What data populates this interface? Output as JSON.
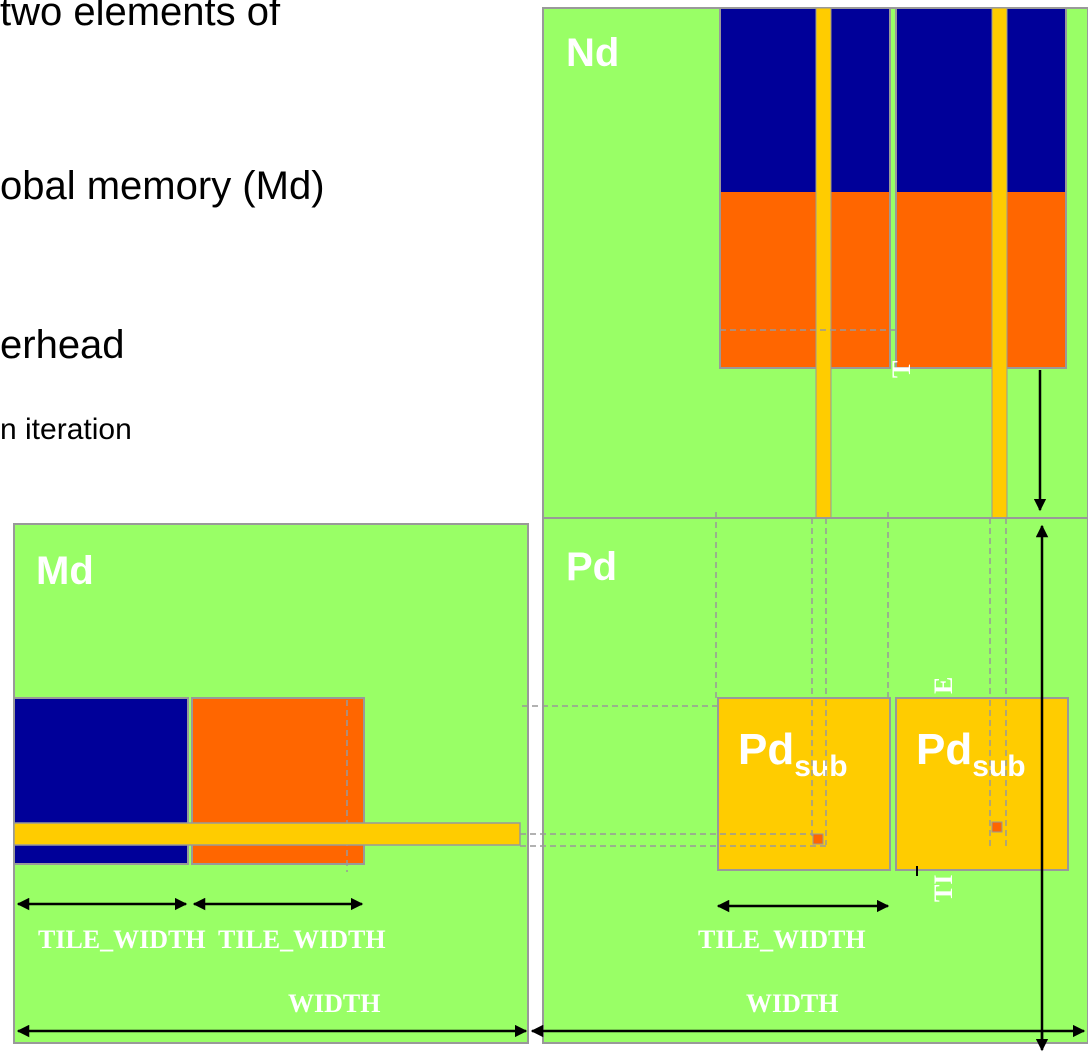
{
  "bullets": [
    "two elements of",
    "obal memory (Md)",
    "erhead",
    "n iteration"
  ],
  "matrices": {
    "nd": "Nd",
    "md": "Md",
    "pd": "Pd"
  },
  "tiles": {
    "pd_sub_base": "Pd",
    "pd_sub_subscript": "sub"
  },
  "dimensions": {
    "md_tile_width_1": "TILE_WIDTH",
    "md_tile_width_2": "TILE_WIDTH",
    "md_width": "WIDTH",
    "pd_tile_width": "TILE_WIDTH",
    "pd_width": "WIDTH",
    "nd_vertical_fragment": "T",
    "pd_vertical_fragment_top": "E",
    "pd_vertical_fragment_bottom": "TI"
  },
  "colors": {
    "matrix_green": "#99FF66",
    "tile_blue": "#000099",
    "tile_orange": "#FF6600",
    "strip_yellow": "#FFCC00",
    "border_gray": "#999999"
  }
}
